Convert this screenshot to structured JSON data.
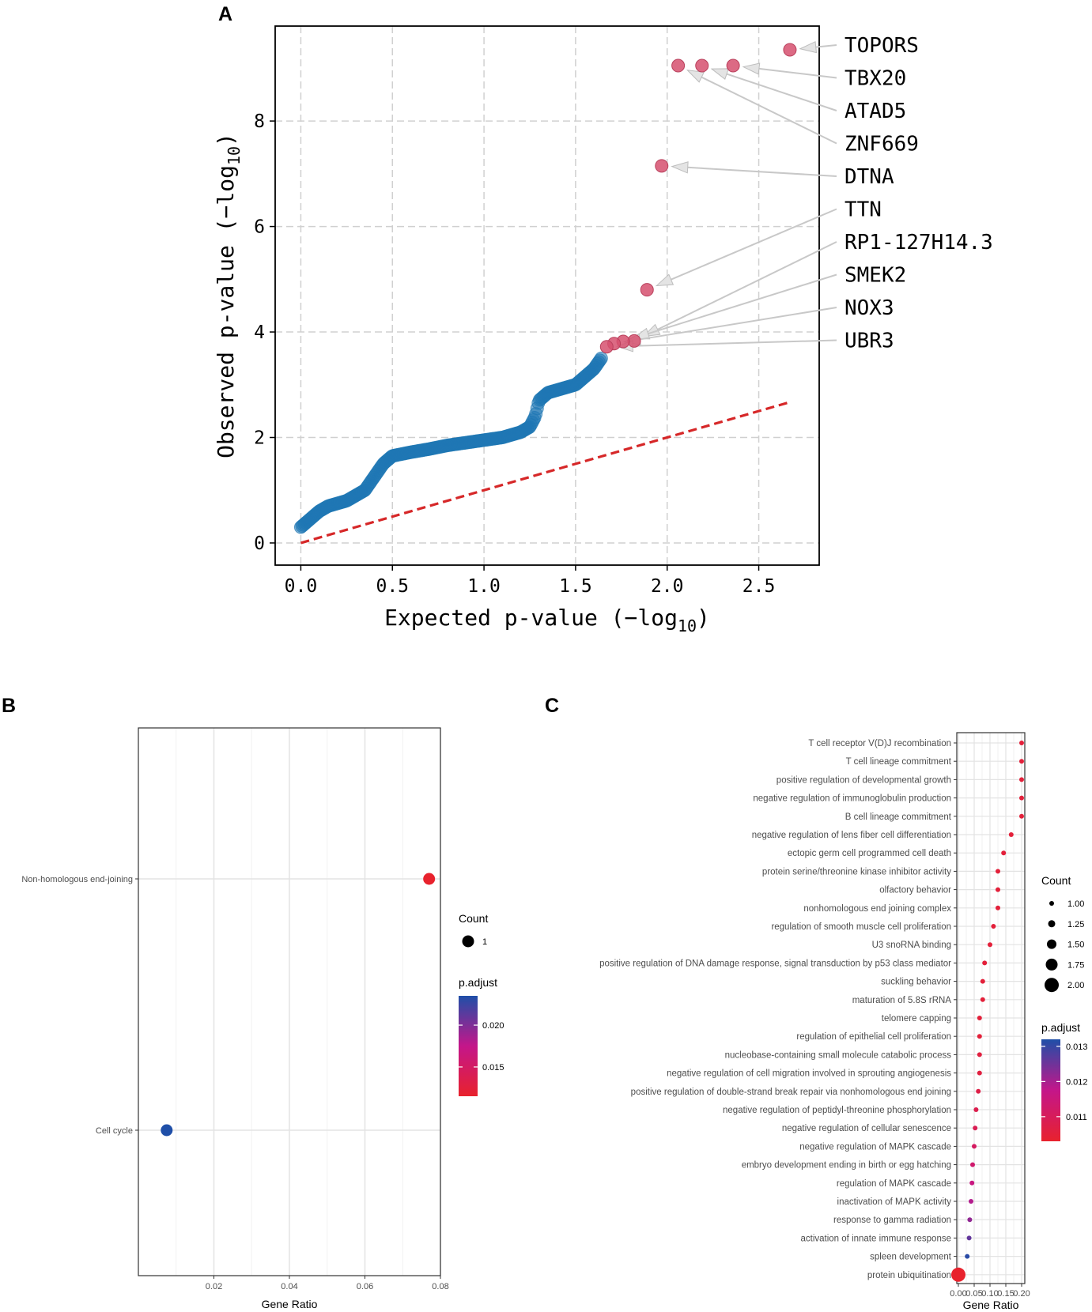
{
  "figure_letters": {
    "a": "A",
    "b": "B",
    "c": "C"
  },
  "chart_data": [
    {
      "panel": "A",
      "type": "scatter",
      "title": "",
      "xlabel": "Expected p-value (−log",
      "xlabel_sub": "10",
      "xlabel_end": ")",
      "ylabel": "Observed p-value (−log",
      "ylabel_sub": "10",
      "ylabel_end": ")",
      "xlim": [
        -0.14,
        2.83
      ],
      "ylim": [
        -0.42,
        9.8
      ],
      "xticks": [
        0.0,
        0.5,
        1.0,
        1.5,
        2.0,
        2.5
      ],
      "xtick_labels": [
        "0.0",
        "0.5",
        "1.0",
        "1.5",
        "2.0",
        "2.5"
      ],
      "yticks": [
        0,
        2,
        4,
        6,
        8
      ],
      "ytick_labels": [
        "0",
        "2",
        "4",
        "6",
        "8"
      ],
      "grid": true,
      "colors": {
        "background_points": "#1f77b4",
        "highlighted_points": "#d6506e",
        "reference_line": "#d62728",
        "arrow": "#c8c8c8"
      },
      "background_series": {
        "name": "genes",
        "x_start": 0.0,
        "x_end": 1.64,
        "count": 240,
        "curve": [
          [
            0.0,
            0.3
          ],
          [
            0.05,
            0.45
          ],
          [
            0.1,
            0.6
          ],
          [
            0.15,
            0.7
          ],
          [
            0.2,
            0.75
          ],
          [
            0.25,
            0.8
          ],
          [
            0.3,
            0.9
          ],
          [
            0.35,
            1.0
          ],
          [
            0.4,
            1.25
          ],
          [
            0.45,
            1.5
          ],
          [
            0.5,
            1.65
          ],
          [
            0.6,
            1.72
          ],
          [
            0.7,
            1.78
          ],
          [
            0.8,
            1.85
          ],
          [
            0.9,
            1.9
          ],
          [
            1.0,
            1.95
          ],
          [
            1.1,
            2.0
          ],
          [
            1.2,
            2.1
          ],
          [
            1.25,
            2.2
          ],
          [
            1.28,
            2.4
          ],
          [
            1.3,
            2.7
          ],
          [
            1.35,
            2.85
          ],
          [
            1.4,
            2.9
          ],
          [
            1.5,
            3.0
          ],
          [
            1.55,
            3.15
          ],
          [
            1.6,
            3.3
          ],
          [
            1.64,
            3.5
          ]
        ]
      },
      "highlighted_points": [
        {
          "label": "TOPORS",
          "x": 2.67,
          "y": 9.35
        },
        {
          "label": "TBX20",
          "x": 2.36,
          "y": 9.05
        },
        {
          "label": "ATAD5",
          "x": 2.19,
          "y": 9.05
        },
        {
          "label": "ZNF669",
          "x": 2.06,
          "y": 9.05
        },
        {
          "label": "DTNA",
          "x": 1.97,
          "y": 7.15
        },
        {
          "label": "TTN",
          "x": 1.89,
          "y": 4.8
        },
        {
          "label": "RP1-127H14.3",
          "x": 1.82,
          "y": 3.83
        },
        {
          "label": "SMEK2",
          "x": 1.76,
          "y": 3.82
        },
        {
          "label": "NOX3",
          "x": 1.71,
          "y": 3.78
        },
        {
          "label": "UBR3",
          "x": 1.67,
          "y": 3.72
        }
      ],
      "reference_line": {
        "x": [
          0.0,
          2.67
        ],
        "y": [
          0.0,
          2.67
        ]
      }
    },
    {
      "panel": "B",
      "type": "scatter",
      "title": "",
      "xlabel": "Gene Ratio",
      "ylabel": "",
      "xlim": [
        0.0,
        0.08
      ],
      "xticks": [
        0.02,
        0.04,
        0.06,
        0.08
      ],
      "xtick_labels": [
        "0.02",
        "0.04",
        "0.06",
        "0.08"
      ],
      "categories": [
        "Non-homologous end-joining",
        "Cell cycle"
      ],
      "values": [
        0.077,
        0.0075
      ],
      "p_adjust": [
        0.0115,
        0.0235
      ],
      "count": [
        1,
        1
      ],
      "grid": true,
      "legend_count": {
        "title": "Count",
        "items": [
          "1"
        ]
      },
      "legend_padjust": {
        "title": "p.adjust",
        "ticks": [
          "0.020",
          "0.015"
        ],
        "tick_values": [
          0.02,
          0.015
        ],
        "range": [
          0.0115,
          0.0235
        ]
      }
    },
    {
      "panel": "C",
      "type": "scatter",
      "title": "",
      "xlabel": "Gene Ratio",
      "ylabel": "",
      "xlim": [
        -0.005,
        0.21
      ],
      "xticks": [
        0.0,
        0.05,
        0.1,
        0.15,
        0.2
      ],
      "xtick_labels": [
        "0.00",
        "0.05",
        "0.10",
        "0.15",
        "0.20"
      ],
      "categories": [
        "T cell receptor V(D)J recombination",
        "T cell lineage commitment",
        "positive regulation of developmental growth",
        "negative regulation of immunoglobulin production",
        "B cell lineage commitment",
        "negative regulation of lens fiber cell differentiation",
        "ectopic germ cell programmed cell death",
        "protein serine/threonine kinase inhibitor activity",
        "olfactory behavior",
        "nonhomologous end joining complex",
        "regulation of smooth muscle cell proliferation",
        "U3 snoRNA binding",
        "positive regulation of DNA damage response, signal transduction by p53 class mediator",
        "suckling behavior",
        "maturation of 5.8S rRNA",
        "telomere capping",
        "regulation of epithelial cell proliferation",
        "nucleobase-containing small molecule catabolic process",
        "negative regulation of cell migration involved in sprouting angiogenesis",
        "positive regulation of double-strand break repair via nonhomologous end joining",
        "negative regulation of peptidyl-threonine phosphorylation",
        "negative regulation of cellular senescence",
        "negative regulation of MAPK cascade",
        "embryo development ending in birth or egg hatching",
        "regulation of MAPK cascade",
        "inactivation of MAPK activity",
        "response to gamma radiation",
        "activation of innate immune response",
        "spleen development",
        "protein ubiquitination"
      ],
      "values": [
        0.2,
        0.2,
        0.2,
        0.2,
        0.2,
        0.167,
        0.143,
        0.125,
        0.125,
        0.125,
        0.111,
        0.1,
        0.083,
        0.077,
        0.077,
        0.067,
        0.067,
        0.067,
        0.067,
        0.063,
        0.056,
        0.053,
        0.05,
        0.045,
        0.043,
        0.04,
        0.036,
        0.034,
        0.028,
        0.0
      ],
      "p_adjust": [
        0.0105,
        0.0105,
        0.0105,
        0.0105,
        0.0105,
        0.0105,
        0.0105,
        0.0105,
        0.0105,
        0.0105,
        0.0105,
        0.0105,
        0.0105,
        0.0105,
        0.0105,
        0.0105,
        0.0105,
        0.0106,
        0.0106,
        0.0107,
        0.0108,
        0.0109,
        0.0111,
        0.0113,
        0.0116,
        0.0119,
        0.0122,
        0.0126,
        0.0131,
        0.0103
      ],
      "count": [
        1,
        1,
        1,
        1,
        1,
        1,
        1,
        1,
        1,
        1,
        1,
        1,
        1,
        1,
        1,
        1,
        1,
        1,
        1,
        1,
        1,
        1,
        1,
        1,
        1,
        1,
        1,
        1,
        1,
        2
      ],
      "grid": true,
      "legend_count": {
        "title": "Count",
        "items": [
          "1.00",
          "1.25",
          "1.50",
          "1.75",
          "2.00"
        ],
        "item_values": [
          1.0,
          1.25,
          1.5,
          1.75,
          2.0
        ]
      },
      "legend_padjust": {
        "title": "p.adjust",
        "ticks": [
          "0.013",
          "0.012",
          "0.011"
        ],
        "tick_values": [
          0.013,
          0.012,
          0.011
        ],
        "range": [
          0.0103,
          0.0132
        ]
      }
    }
  ]
}
